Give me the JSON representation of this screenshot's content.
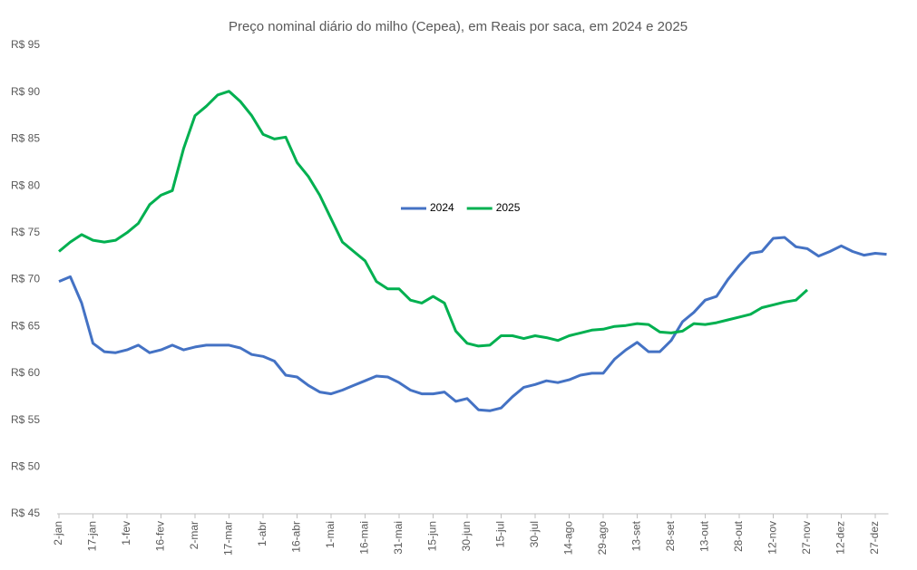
{
  "chart_data": {
    "type": "line",
    "title": "Preço nominal diário do milho (Cepea), em Reais por saca, em 2024 e 2025",
    "categories": [
      "2-jan",
      null,
      null,
      "17-jan",
      null,
      null,
      "1-fev",
      null,
      null,
      "16-fev",
      null,
      null,
      "2-mar",
      null,
      null,
      "17-mar",
      null,
      null,
      "1-abr",
      null,
      null,
      "16-abr",
      null,
      null,
      "1-mai",
      null,
      null,
      "16-mai",
      null,
      null,
      "31-mai",
      null,
      null,
      "15-jun",
      null,
      null,
      "30-jun",
      null,
      null,
      "15-jul",
      null,
      null,
      "30-jul",
      null,
      null,
      "14-ago",
      null,
      null,
      "29-ago",
      null,
      null,
      "13-set",
      null,
      null,
      "28-set",
      null,
      null,
      "13-out",
      null,
      null,
      "28-out",
      null,
      null,
      "12-nov",
      null,
      null,
      "27-nov",
      null,
      null,
      "12-dez",
      null,
      null,
      "27-dez",
      null
    ],
    "series": [
      {
        "name": "2024",
        "color": "#4472c4",
        "values": [
          69.8,
          70.3,
          67.5,
          63.2,
          62.3,
          62.2,
          62.5,
          63,
          62.2,
          62.5,
          63,
          62.5,
          62.8,
          63,
          63,
          63,
          62.7,
          62,
          61.8,
          61.3,
          59.8,
          59.6,
          58.7,
          58,
          57.8,
          58.2,
          58.7,
          59.2,
          59.7,
          59.6,
          59,
          58.2,
          57.8,
          57.8,
          58,
          57,
          57.3,
          56.1,
          56,
          56.3,
          57.5,
          58.5,
          58.8,
          59.2,
          59,
          59.3,
          59.8,
          60,
          60,
          61.5,
          62.5,
          63.3,
          62.3,
          62.3,
          63.5,
          65.5,
          66.5,
          67.8,
          68.2,
          70,
          71.5,
          72.8,
          73,
          74.4,
          74.5,
          73.5,
          73.3,
          72.5,
          73,
          73.6,
          73,
          72.6,
          72.8,
          72.7
        ]
      },
      {
        "name": "2025",
        "color": "#00b050",
        "values": [
          73,
          74,
          74.8,
          74.2,
          74,
          74.2,
          75,
          76,
          78,
          79,
          79.5,
          84,
          87.5,
          88.5,
          89.7,
          90.1,
          89,
          87.5,
          85.5,
          85,
          85.2,
          82.5,
          81,
          79,
          76.5,
          74,
          73,
          72,
          69.8,
          69,
          69,
          67.8,
          67.5,
          68.2,
          67.5,
          64.5,
          63.2,
          62.9,
          63,
          64,
          64,
          63.7,
          64,
          63.8,
          63.5,
          64,
          64.3,
          64.6,
          64.7,
          65,
          65.1,
          65.3,
          65.2,
          64.4,
          64.3,
          64.5,
          65.3,
          65.2,
          65.4,
          65.7,
          66,
          66.3,
          67,
          67.3,
          67.6,
          67.8,
          68.9,
          null,
          null,
          null,
          null,
          null,
          null,
          null
        ]
      }
    ],
    "ylim": [
      45,
      95
    ],
    "yticks": [
      {
        "value": 45,
        "label": "R$ 45"
      },
      {
        "value": 50,
        "label": "R$ 50"
      },
      {
        "value": 55,
        "label": "R$ 55"
      },
      {
        "value": 60,
        "label": "R$ 60"
      },
      {
        "value": 65,
        "label": "R$ 65"
      },
      {
        "value": 70,
        "label": "R$ 70"
      },
      {
        "value": 75,
        "label": "R$ 75"
      },
      {
        "value": 80,
        "label": "R$ 80"
      },
      {
        "value": 85,
        "label": "R$ 85"
      },
      {
        "value": 90,
        "label": "R$ 90"
      },
      {
        "value": 95,
        "label": "R$ 95"
      }
    ],
    "grid": false,
    "legend_position": "center"
  }
}
